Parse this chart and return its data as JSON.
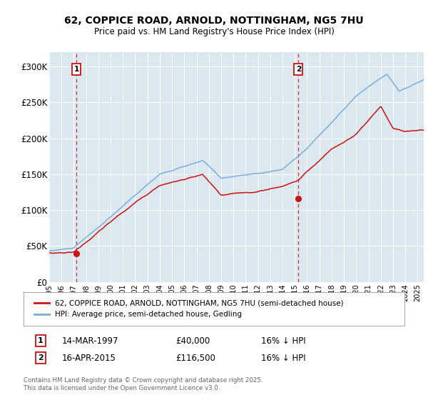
{
  "title_line1": "62, COPPICE ROAD, ARNOLD, NOTTINGHAM, NG5 7HU",
  "title_line2": "Price paid vs. HM Land Registry's House Price Index (HPI)",
  "ylabel_ticks": [
    "£0",
    "£50K",
    "£100K",
    "£150K",
    "£200K",
    "£250K",
    "£300K"
  ],
  "ytick_values": [
    0,
    50000,
    100000,
    150000,
    200000,
    250000,
    300000
  ],
  "ylim": [
    0,
    320000
  ],
  "xlim_start": 1995.0,
  "xlim_end": 2025.5,
  "xticks": [
    1995,
    1996,
    1997,
    1998,
    1999,
    2000,
    2001,
    2002,
    2003,
    2004,
    2005,
    2006,
    2007,
    2008,
    2009,
    2010,
    2011,
    2012,
    2013,
    2014,
    2015,
    2016,
    2017,
    2018,
    2019,
    2020,
    2021,
    2022,
    2023,
    2024,
    2025
  ],
  "hpi_color": "#7aaddc",
  "price_color": "#cc1111",
  "bg_color": "#dce8f0",
  "marker1_x": 1997.21,
  "marker1_y": 40000,
  "marker1_label": "1",
  "marker2_x": 2015.29,
  "marker2_y": 116500,
  "marker2_label": "2",
  "annotation1_date": "14-MAR-1997",
  "annotation1_price": "£40,000",
  "annotation1_hpi": "16% ↓ HPI",
  "annotation2_date": "16-APR-2015",
  "annotation2_price": "£116,500",
  "annotation2_hpi": "16% ↓ HPI",
  "legend_label_price": "62, COPPICE ROAD, ARNOLD, NOTTINGHAM, NG5 7HU (semi-detached house)",
  "legend_label_hpi": "HPI: Average price, semi-detached house, Gedling",
  "footer": "Contains HM Land Registry data © Crown copyright and database right 2025.\nThis data is licensed under the Open Government Licence v3.0.",
  "grid_color": "#ffffff",
  "vline_color": "#cc1111"
}
